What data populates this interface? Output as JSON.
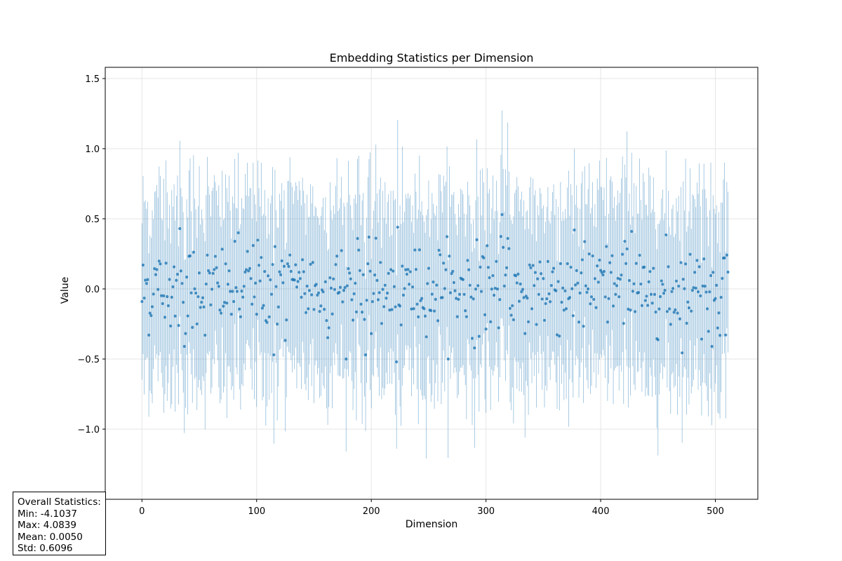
{
  "chart_data": {
    "type": "scatter",
    "title": "Embedding Statistics per Dimension",
    "xlabel": "Dimension",
    "ylabel": "Value",
    "xlim": [
      -32,
      537
    ],
    "ylim": [
      -1.5,
      1.58
    ],
    "xticks": [
      0,
      100,
      200,
      300,
      400,
      500
    ],
    "yticks": [
      -1.5,
      -1.0,
      -0.5,
      0.0,
      0.5,
      1.0,
      1.5
    ],
    "ytick_labels": [
      "−1.5",
      "−1.0",
      "−0.5",
      "0.0",
      "0.5",
      "1.0",
      "1.5"
    ],
    "grid": true,
    "n_dimensions": 512,
    "series": [
      {
        "marker": "mean (points)",
        "color": "#1f77b4"
      },
      {
        "marker": "std (error bars)",
        "color": "#1f77b4"
      }
    ],
    "mean_sample": [
      {
        "x": 0,
        "y": -0.09
      },
      {
        "x": 1,
        "y": 0.17
      },
      {
        "x": 33,
        "y": 0.43
      },
      {
        "x": 37,
        "y": -0.41
      },
      {
        "x": 84,
        "y": 0.4
      },
      {
        "x": 115,
        "y": -0.47
      },
      {
        "x": 195,
        "y": -0.47
      },
      {
        "x": 222,
        "y": -0.52
      },
      {
        "x": 223,
        "y": 0.44
      },
      {
        "x": 314,
        "y": 0.53
      },
      {
        "x": 377,
        "y": 0.42
      },
      {
        "x": 427,
        "y": 0.41
      },
      {
        "x": 497,
        "y": -0.41
      },
      {
        "x": 511,
        "y": 0.12
      }
    ],
    "value_range": {
      "mean_min": -0.52,
      "mean_max": 0.53,
      "extreme_low": -1.41,
      "extreme_high": 1.44
    }
  },
  "stats": {
    "heading": "Overall Statistics:",
    "min": "Min: -4.1037",
    "max": "Max: 4.0839",
    "mean": "Mean: 0.0050",
    "std": "Std: 0.6096"
  }
}
